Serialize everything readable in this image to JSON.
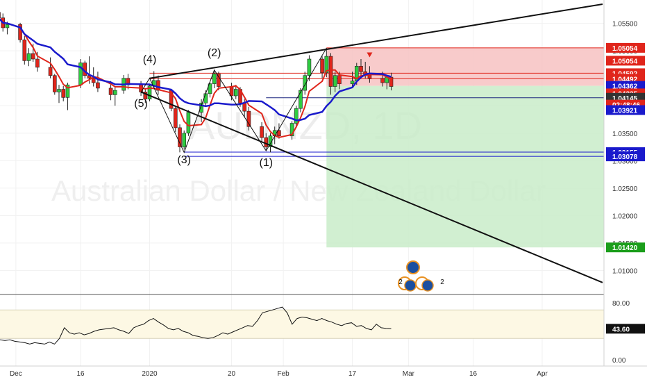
{
  "chart_data": {
    "type": "candlestick",
    "symbol": "AUDNZD, 1D",
    "description": "Australian Dollar / New Zealand Dollar",
    "price_range": [
      1.0055,
      1.059
    ],
    "y_ticks": [
      1.055,
      1.05,
      1.045,
      1.04,
      1.035,
      1.03,
      1.025,
      1.02,
      1.015,
      1.01
    ],
    "y_tick_labels": [
      "1.05500",
      "1.05000",
      "1.04500",
      "1.04000",
      "1.03500",
      "1.03000",
      "1.02500",
      "1.02000",
      "1.01500",
      "1.01000"
    ],
    "x_range": [
      "2019-11-27",
      "2020-04-15"
    ],
    "x_ticks": [
      {
        "date": "2019-12-01",
        "label": "Dec"
      },
      {
        "date": "2019-12-16",
        "label": "16"
      },
      {
        "date": "2020-01-01",
        "label": "2020"
      },
      {
        "date": "2020-01-20",
        "label": "20"
      },
      {
        "date": "2020-02-01",
        "label": "Feb"
      },
      {
        "date": "2020-02-17",
        "label": "17"
      },
      {
        "date": "2020-03-01",
        "label": "Mar"
      },
      {
        "date": "2020-03-16",
        "label": "16"
      },
      {
        "date": "2020-04-01",
        "label": "Apr"
      }
    ],
    "candles": [
      {
        "date": "2019-11-27",
        "o": 1.057,
        "h": 1.0576,
        "l": 1.0552,
        "c": 1.056
      },
      {
        "date": "2019-11-28",
        "o": 1.056,
        "h": 1.0568,
        "l": 1.0535,
        "c": 1.0542
      },
      {
        "date": "2019-11-29",
        "o": 1.0542,
        "h": 1.0553,
        "l": 1.053,
        "c": 1.0548
      },
      {
        "date": "2019-12-02",
        "o": 1.0548,
        "h": 1.0551,
        "l": 1.0515,
        "c": 1.052
      },
      {
        "date": "2019-12-03",
        "o": 1.052,
        "h": 1.0527,
        "l": 1.0475,
        "c": 1.0482
      },
      {
        "date": "2019-12-04",
        "o": 1.0482,
        "h": 1.0505,
        "l": 1.0472,
        "c": 1.0495
      },
      {
        "date": "2019-12-05",
        "o": 1.0495,
        "h": 1.0513,
        "l": 1.048,
        "c": 1.0485
      },
      {
        "date": "2019-12-06",
        "o": 1.0485,
        "h": 1.0498,
        "l": 1.0462,
        "c": 1.047
      },
      {
        "date": "2019-12-09",
        "o": 1.047,
        "h": 1.0488,
        "l": 1.045,
        "c": 1.0455
      },
      {
        "date": "2019-12-10",
        "o": 1.0455,
        "h": 1.0458,
        "l": 1.042,
        "c": 1.0425
      },
      {
        "date": "2019-12-11",
        "o": 1.0425,
        "h": 1.0438,
        "l": 1.0405,
        "c": 1.043
      },
      {
        "date": "2019-12-12",
        "o": 1.043,
        "h": 1.0436,
        "l": 1.0408,
        "c": 1.0415
      },
      {
        "date": "2019-12-13",
        "o": 1.0415,
        "h": 1.0442,
        "l": 1.0392,
        "c": 1.0438
      },
      {
        "date": "2019-12-16",
        "o": 1.0438,
        "h": 1.0485,
        "l": 1.0432,
        "c": 1.0478
      },
      {
        "date": "2019-12-17",
        "o": 1.0478,
        "h": 1.0482,
        "l": 1.045,
        "c": 1.0455
      },
      {
        "date": "2019-12-18",
        "o": 1.0455,
        "h": 1.049,
        "l": 1.044,
        "c": 1.045
      },
      {
        "date": "2019-12-19",
        "o": 1.045,
        "h": 1.047,
        "l": 1.0435,
        "c": 1.0442
      },
      {
        "date": "2019-12-20",
        "o": 1.0442,
        "h": 1.0462,
        "l": 1.0425,
        "c": 1.0432
      },
      {
        "date": "2019-12-23",
        "o": 1.0432,
        "h": 1.0445,
        "l": 1.041,
        "c": 1.042
      },
      {
        "date": "2019-12-24",
        "o": 1.042,
        "h": 1.0435,
        "l": 1.04,
        "c": 1.0428
      },
      {
        "date": "2019-12-26",
        "o": 1.0428,
        "h": 1.0456,
        "l": 1.0422,
        "c": 1.045
      },
      {
        "date": "2019-12-27",
        "o": 1.045,
        "h": 1.0458,
        "l": 1.043,
        "c": 1.0438
      },
      {
        "date": "2019-12-30",
        "o": 1.0438,
        "h": 1.0445,
        "l": 1.0418,
        "c": 1.0425
      },
      {
        "date": "2019-12-31",
        "o": 1.0425,
        "h": 1.0432,
        "l": 1.0405,
        "c": 1.0412
      },
      {
        "date": "2020-01-01",
        "o": 1.0412,
        "h": 1.044,
        "l": 1.0408,
        "c": 1.0436
      },
      {
        "date": "2020-01-02",
        "o": 1.0436,
        "h": 1.0463,
        "l": 1.043,
        "c": 1.0446
      },
      {
        "date": "2020-01-03",
        "o": 1.0446,
        "h": 1.0455,
        "l": 1.042,
        "c": 1.0428
      },
      {
        "date": "2020-01-06",
        "o": 1.0428,
        "h": 1.043,
        "l": 1.039,
        "c": 1.0395
      },
      {
        "date": "2020-01-07",
        "o": 1.0395,
        "h": 1.0398,
        "l": 1.0352,
        "c": 1.036
      },
      {
        "date": "2020-01-08",
        "o": 1.036,
        "h": 1.0366,
        "l": 1.0315,
        "c": 1.0325
      },
      {
        "date": "2020-01-09",
        "o": 1.0325,
        "h": 1.0355,
        "l": 1.032,
        "c": 1.035
      },
      {
        "date": "2020-01-10",
        "o": 1.035,
        "h": 1.0392,
        "l": 1.0345,
        "c": 1.0388
      },
      {
        "date": "2020-01-13",
        "o": 1.0388,
        "h": 1.0412,
        "l": 1.037,
        "c": 1.0405
      },
      {
        "date": "2020-01-14",
        "o": 1.0405,
        "h": 1.0428,
        "l": 1.0398,
        "c": 1.0422
      },
      {
        "date": "2020-01-15",
        "o": 1.0422,
        "h": 1.0445,
        "l": 1.0415,
        "c": 1.044
      },
      {
        "date": "2020-01-16",
        "o": 1.044,
        "h": 1.0465,
        "l": 1.0432,
        "c": 1.0458
      },
      {
        "date": "2020-01-17",
        "o": 1.0458,
        "h": 1.0462,
        "l": 1.0428,
        "c": 1.0435
      },
      {
        "date": "2020-01-20",
        "o": 1.0435,
        "h": 1.0442,
        "l": 1.041,
        "c": 1.0418
      },
      {
        "date": "2020-01-21",
        "o": 1.0418,
        "h": 1.0438,
        "l": 1.0412,
        "c": 1.043
      },
      {
        "date": "2020-01-22",
        "o": 1.043,
        "h": 1.0434,
        "l": 1.0398,
        "c": 1.0405
      },
      {
        "date": "2020-01-23",
        "o": 1.0405,
        "h": 1.0412,
        "l": 1.038,
        "c": 1.039
      },
      {
        "date": "2020-01-24",
        "o": 1.039,
        "h": 1.0398,
        "l": 1.0355,
        "c": 1.0362
      },
      {
        "date": "2020-01-27",
        "o": 1.0362,
        "h": 1.037,
        "l": 1.0335,
        "c": 1.0342
      },
      {
        "date": "2020-01-28",
        "o": 1.0342,
        "h": 1.035,
        "l": 1.0318,
        "c": 1.0325
      },
      {
        "date": "2020-01-29",
        "o": 1.0325,
        "h": 1.035,
        "l": 1.0315,
        "c": 1.0345
      },
      {
        "date": "2020-01-30",
        "o": 1.0345,
        "h": 1.0362,
        "l": 1.033,
        "c": 1.0355
      },
      {
        "date": "2020-01-31",
        "o": 1.0355,
        "h": 1.0368,
        "l": 1.034,
        "c": 1.0345
      },
      {
        "date": "2020-02-03",
        "o": 1.0345,
        "h": 1.0372,
        "l": 1.0338,
        "c": 1.0368
      },
      {
        "date": "2020-02-04",
        "o": 1.0368,
        "h": 1.04,
        "l": 1.036,
        "c": 1.0395
      },
      {
        "date": "2020-02-05",
        "o": 1.0395,
        "h": 1.0432,
        "l": 1.0388,
        "c": 1.0428
      },
      {
        "date": "2020-02-06",
        "o": 1.0428,
        "h": 1.0462,
        "l": 1.042,
        "c": 1.0455
      },
      {
        "date": "2020-02-07",
        "o": 1.0455,
        "h": 1.0492,
        "l": 1.0445,
        "c": 1.0485
      },
      {
        "date": "2020-02-10",
        "o": 1.0485,
        "h": 1.049,
        "l": 1.045,
        "c": 1.046
      },
      {
        "date": "2020-02-11",
        "o": 1.046,
        "h": 1.0505,
        "l": 1.0452,
        "c": 1.049
      },
      {
        "date": "2020-02-12",
        "o": 1.049,
        "h": 1.0496,
        "l": 1.042,
        "c": 1.0435
      },
      {
        "date": "2020-02-13",
        "o": 1.0435,
        "h": 1.0462,
        "l": 1.0425,
        "c": 1.0455
      },
      {
        "date": "2020-02-14",
        "o": 1.0455,
        "h": 1.0462,
        "l": 1.043,
        "c": 1.044
      },
      {
        "date": "2020-02-17",
        "o": 1.044,
        "h": 1.0462,
        "l": 1.0432,
        "c": 1.0445
      },
      {
        "date": "2020-02-18",
        "o": 1.0445,
        "h": 1.0478,
        "l": 1.0438,
        "c": 1.0472
      },
      {
        "date": "2020-02-19",
        "o": 1.0472,
        "h": 1.0485,
        "l": 1.0455,
        "c": 1.0462
      },
      {
        "date": "2020-02-20",
        "o": 1.0462,
        "h": 1.048,
        "l": 1.045,
        "c": 1.0456
      },
      {
        "date": "2020-02-21",
        "o": 1.0456,
        "h": 1.0472,
        "l": 1.0442,
        "c": 1.045
      },
      {
        "date": "2020-02-24",
        "o": 1.045,
        "h": 1.0462,
        "l": 1.0435,
        "c": 1.0442
      },
      {
        "date": "2020-02-25",
        "o": 1.0442,
        "h": 1.0456,
        "l": 1.043,
        "c": 1.0452
      },
      {
        "date": "2020-02-26",
        "o": 1.0452,
        "h": 1.046,
        "l": 1.0428,
        "c": 1.0435
      }
    ],
    "moving_averages": [
      {
        "name": "",
        "color": "#e0251b",
        "period": 5
      },
      {
        "name": "",
        "color": "#1a1acc",
        "period": 12
      }
    ],
    "wave_labels": [
      {
        "text": "(4)",
        "date": "2020-01-01",
        "price": 1.0478
      },
      {
        "text": "(2)",
        "date": "2020-01-16",
        "price": 1.049
      },
      {
        "text": "(5)",
        "date": "2019-12-30",
        "price": 1.0398
      },
      {
        "text": "(3)",
        "date": "2020-01-09",
        "price": 1.0295
      },
      {
        "text": "(1)",
        "date": "2020-01-28",
        "price": 1.029
      }
    ],
    "wave_path": [
      {
        "date": "2019-12-30",
        "price": 1.0425
      },
      {
        "date": "2020-01-01",
        "price": 1.045
      },
      {
        "date": "2020-01-09",
        "price": 1.0315
      },
      {
        "date": "2020-01-16",
        "price": 1.0465
      },
      {
        "date": "2020-01-28",
        "price": 1.0318
      },
      {
        "date": "2020-02-11",
        "price": 1.0505
      }
    ],
    "trendlines": [
      {
        "from": {
          "date": "2020-01-01",
          "price": 1.045
        },
        "to": {
          "date": "2020-04-15",
          "price": 1.0585
        }
      },
      {
        "from": {
          "date": "2019-12-30",
          "price": 1.0425
        },
        "to": {
          "date": "2020-04-15",
          "price": 1.0078
        }
      }
    ],
    "position": {
      "direction": "short",
      "start_date": "2020-02-11",
      "end_date": "2020-04-15",
      "entry": 1.04362,
      "stop": 1.05054,
      "target": 1.0142
    },
    "horizontal_levels": [
      {
        "price": 1.05054,
        "color": "#e0251b"
      },
      {
        "price": 1.04592,
        "color": "#e0251b"
      },
      {
        "price": 1.04492,
        "color": "#e0251b"
      },
      {
        "price": 1.04145,
        "color": "#1a237e"
      },
      {
        "price": 1.03155,
        "color": "#1a1acc"
      },
      {
        "price": 1.03078,
        "color": "#1a1acc"
      }
    ],
    "price_tags": [
      {
        "value": "1.05054",
        "price": 1.05054,
        "bg": "#e0251b",
        "fg": "#ffffff"
      },
      {
        "value": "1.05054",
        "price": 1.0482,
        "bg": "#e0251b",
        "fg": "#ffffff"
      },
      {
        "value": "1.04592",
        "price": 1.04592,
        "bg": "#e0251b",
        "fg": "#ffffff"
      },
      {
        "value": "1.04492",
        "price": 1.04492,
        "bg": "#e0251b",
        "fg": "#ffffff"
      },
      {
        "value": "1.04362",
        "price": 1.04362,
        "bg": "#1a1acc",
        "fg": "#ffffff"
      },
      {
        "value": "1.04225",
        "price": 1.04225,
        "bg": "#e0251b",
        "fg": "#ffffff"
      },
      {
        "value": "1.04145",
        "price": 1.04145,
        "bg": "#333333",
        "fg": "#ffffff"
      },
      {
        "value": "02:48:46",
        "price": 1.0402,
        "bg": "#e0251b",
        "fg": "#ffffff"
      },
      {
        "value": "1.03921",
        "price": 1.03921,
        "bg": "#1a1acc",
        "fg": "#ffffff"
      },
      {
        "value": "1.03155",
        "price": 1.03155,
        "bg": "#1a1acc",
        "fg": "#ffffff"
      },
      {
        "value": "1.03078",
        "price": 1.03078,
        "bg": "#1a1acc",
        "fg": "#ffffff"
      },
      {
        "value": "1.01420",
        "price": 1.0142,
        "bg": "#1b9e1b",
        "fg": "#ffffff"
      }
    ],
    "event_badges": [
      {
        "count": "2"
      },
      {
        "count": "2"
      }
    ],
    "oscillator": {
      "current_value": "43.60",
      "range": [
        0,
        100
      ],
      "band": [
        30,
        70
      ],
      "y_tick_labels": [
        {
          "value": 80,
          "label": "80.00"
        },
        {
          "value": 0,
          "label": "0.00"
        }
      ],
      "values": [
        28,
        27,
        28,
        26,
        25,
        24,
        22,
        24,
        23,
        22,
        25,
        22,
        30,
        45,
        38,
        36,
        38,
        35,
        37,
        40,
        42,
        43,
        44,
        45,
        42,
        40,
        37,
        45,
        48,
        50,
        55,
        58,
        53,
        49,
        44,
        42,
        44,
        40,
        38,
        34,
        33,
        31,
        30,
        31,
        34,
        38,
        36,
        39,
        42,
        45,
        48,
        47,
        55,
        66,
        68,
        70,
        72,
        74,
        66,
        50,
        58,
        60,
        59,
        57,
        55,
        58,
        55,
        53,
        50,
        48,
        51,
        52,
        47,
        48,
        44,
        42,
        50,
        45,
        44,
        43.6
      ]
    }
  }
}
